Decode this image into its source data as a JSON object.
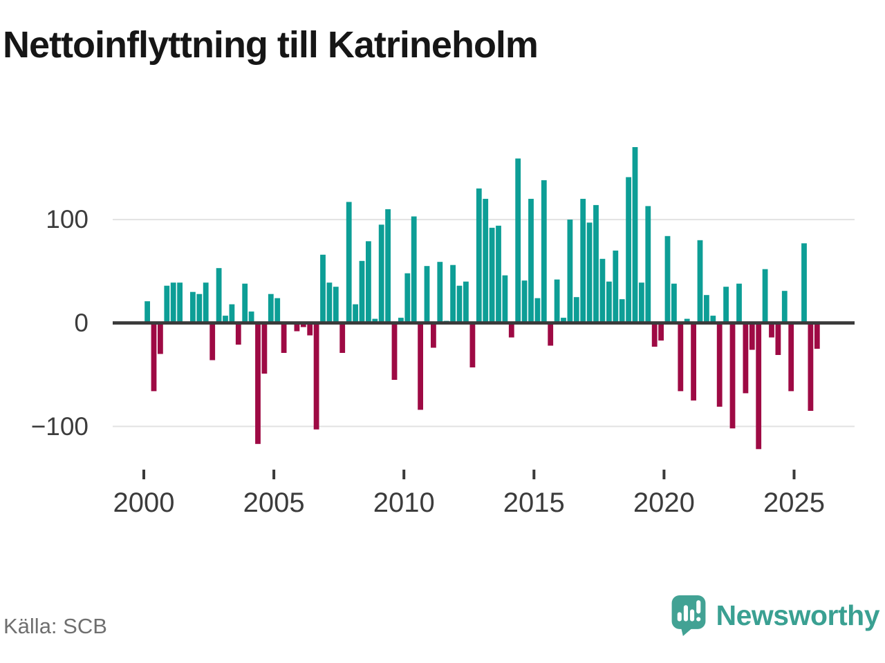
{
  "title": "Nettoinflyttning till Katrineholm",
  "source": "Källa: SCB",
  "brand": {
    "name": "Newsworthy"
  },
  "colors": {
    "positive": "#0d9e96",
    "negative": "#9e0a44",
    "axis": "#3a3a3a",
    "grid": "#e2e2e2",
    "tick_label": "#3c3c3c",
    "source_text": "#6f6f6f",
    "brand_teal": "#3aa092",
    "title_text": "#161616"
  },
  "chart_data": {
    "type": "bar",
    "title": "Nettoinflyttning till Katrineholm",
    "frequency": "quarterly",
    "grid": "horizontal-only",
    "legend_position": "none",
    "ylim": [
      -130,
      185
    ],
    "y_axis": {
      "ticks": [
        {
          "value": 100,
          "label": "100"
        },
        {
          "value": 0,
          "label": "0"
        },
        {
          "value": -100,
          "label": "−100"
        }
      ]
    },
    "x_axis": {
      "ticks": [
        {
          "value": 2000,
          "label": "2000"
        },
        {
          "value": 2005,
          "label": "2005"
        },
        {
          "value": 2010,
          "label": "2010"
        },
        {
          "value": 2015,
          "label": "2015"
        },
        {
          "value": 2020,
          "label": "2020"
        },
        {
          "value": 2025,
          "label": "2025"
        }
      ]
    },
    "values_by_year": [
      {
        "year": 2000,
        "q": [
          21,
          -66,
          -30,
          36
        ]
      },
      {
        "year": 2001,
        "q": [
          39,
          39,
          0,
          30
        ]
      },
      {
        "year": 2002,
        "q": [
          28,
          39,
          -36,
          53
        ]
      },
      {
        "year": 2003,
        "q": [
          7,
          18,
          -21,
          38
        ]
      },
      {
        "year": 2004,
        "q": [
          11,
          -117,
          -49,
          28
        ]
      },
      {
        "year": 2005,
        "q": [
          24,
          -29,
          0,
          -8
        ]
      },
      {
        "year": 2006,
        "q": [
          -4,
          -12,
          -103,
          66
        ]
      },
      {
        "year": 2007,
        "q": [
          39,
          35,
          -29,
          117
        ]
      },
      {
        "year": 2008,
        "q": [
          18,
          60,
          79,
          4
        ]
      },
      {
        "year": 2009,
        "q": [
          95,
          110,
          -55,
          5
        ]
      },
      {
        "year": 2010,
        "q": [
          48,
          103,
          -84,
          55
        ]
      },
      {
        "year": 2011,
        "q": [
          -24,
          59,
          2,
          56
        ]
      },
      {
        "year": 2012,
        "q": [
          36,
          40,
          -43,
          130
        ]
      },
      {
        "year": 2013,
        "q": [
          120,
          92,
          94,
          46
        ]
      },
      {
        "year": 2014,
        "q": [
          -14,
          159,
          41,
          120
        ]
      },
      {
        "year": 2015,
        "q": [
          24,
          138,
          -22,
          42
        ]
      },
      {
        "year": 2016,
        "q": [
          5,
          100,
          25,
          120
        ]
      },
      {
        "year": 2017,
        "q": [
          97,
          114,
          62,
          40
        ]
      },
      {
        "year": 2018,
        "q": [
          70,
          23,
          141,
          170
        ]
      },
      {
        "year": 2019,
        "q": [
          39,
          113,
          -23,
          -17
        ]
      },
      {
        "year": 2020,
        "q": [
          84,
          38,
          -66,
          4
        ]
      },
      {
        "year": 2021,
        "q": [
          -75,
          80,
          27,
          7
        ]
      },
      {
        "year": 2022,
        "q": [
          -81,
          35,
          -102,
          38
        ]
      },
      {
        "year": 2023,
        "q": [
          -68,
          -26,
          -122,
          52
        ]
      },
      {
        "year": 2024,
        "q": [
          -14,
          -31,
          31,
          -66
        ]
      },
      {
        "year": 2025,
        "q": [
          0,
          77,
          -85,
          -25
        ]
      }
    ]
  }
}
